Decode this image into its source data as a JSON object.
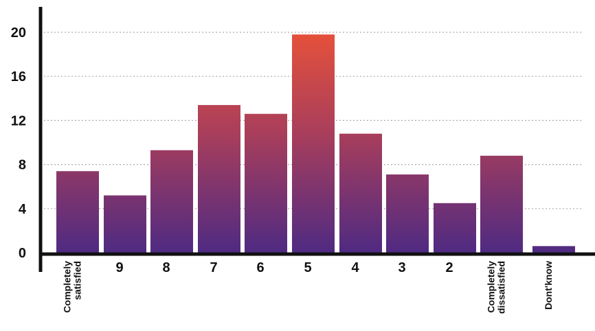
{
  "chart_data": {
    "type": "bar",
    "title": "",
    "xlabel": "",
    "ylabel": "",
    "ylim": [
      0,
      20
    ],
    "yticks": [
      0,
      4,
      8,
      12,
      16,
      20
    ],
    "grid": true,
    "grid_style": "dotted",
    "categories": [
      "Completely satisfied",
      "9",
      "8",
      "7",
      "6",
      "5",
      "4",
      "3",
      "2",
      "Completely dissatisfied",
      "Dont'know"
    ],
    "category_label_lines": [
      [
        "Completely",
        "satisfied"
      ],
      [
        "9"
      ],
      [
        "8"
      ],
      [
        "7"
      ],
      [
        "6"
      ],
      [
        "5"
      ],
      [
        "4"
      ],
      [
        "3"
      ],
      [
        "2"
      ],
      [
        "Completely",
        "dissatisfied"
      ],
      [
        "Dont'know"
      ]
    ],
    "category_label_rotated": [
      true,
      false,
      false,
      false,
      false,
      false,
      false,
      false,
      false,
      true,
      true
    ],
    "values": [
      7.4,
      5.2,
      9.3,
      13.4,
      12.6,
      19.8,
      10.8,
      7.1,
      4.5,
      8.8,
      0.6
    ],
    "colors": {
      "bar_top": "#e3503c",
      "bar_mid": "#a83e5c",
      "bar_bottom": "#4f2a82",
      "axis": "#111111",
      "grid": "#aaaaaa"
    }
  }
}
